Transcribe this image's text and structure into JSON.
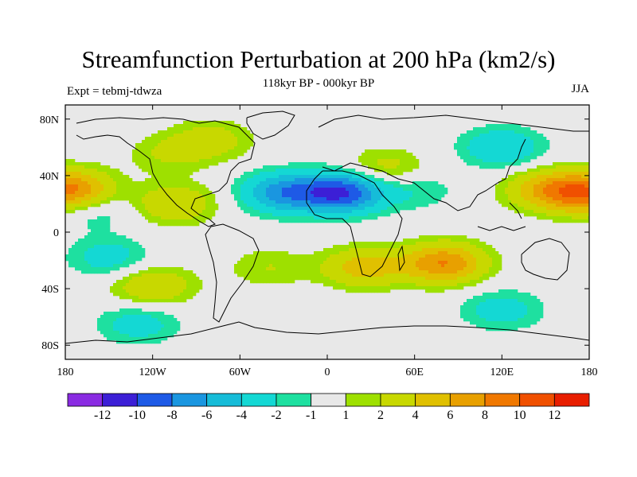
{
  "title": "Streamfunction Perturbation at 200 hPa (km2/s)",
  "subtitle": "118kyr BP - 000kyr BP",
  "left_label": "Expt = tebmj-tdwza",
  "right_label": "JJA",
  "x_ticks": [
    "180",
    "120W",
    "60W",
    "0",
    "60E",
    "120E",
    "180"
  ],
  "y_ticks": [
    "80N",
    "40N",
    "0",
    "40S",
    "80S"
  ],
  "colorbar": {
    "colors": [
      "#8a2be2",
      "#3c1fd6",
      "#1e5ae6",
      "#1a96e0",
      "#16bcd8",
      "#14d8d4",
      "#1ee0a0",
      "#e8e8e8",
      "#9ee000",
      "#c8d800",
      "#e0c000",
      "#e8a000",
      "#f07800",
      "#f05000",
      "#e81e00"
    ],
    "labels": [
      "-12",
      "-10",
      "-8",
      "-6",
      "-4",
      "-2",
      "-1",
      "1",
      "2",
      "4",
      "6",
      "8",
      "10",
      "12"
    ]
  },
  "chart_data": {
    "type": "heatmap",
    "title": "Streamfunction Perturbation at 200 hPa (km2/s)",
    "subtitle": "118kyr BP - 000kyr BP",
    "xlim": [
      -180,
      180
    ],
    "ylim": [
      -90,
      90
    ],
    "x_ticks": [
      -180,
      -120,
      -60,
      0,
      60,
      120,
      180
    ],
    "y_ticks": [
      80,
      40,
      0,
      -40,
      -80
    ],
    "levels": [
      -12,
      -10,
      -8,
      -6,
      -4,
      -2,
      -1,
      1,
      2,
      4,
      6,
      8,
      10,
      12
    ],
    "features": [
      {
        "lon": -178,
        "lat": 30,
        "value": 9
      },
      {
        "lon": 178,
        "lat": 28,
        "value": 9
      },
      {
        "lon": 150,
        "lat": 30,
        "value": 5
      },
      {
        "lon": -105,
        "lat": 20,
        "value": 4
      },
      {
        "lon": -110,
        "lat": 55,
        "value": 2
      },
      {
        "lon": -80,
        "lat": 65,
        "value": 3
      },
      {
        "lon": 80,
        "lat": -22,
        "value": 8
      },
      {
        "lon": 25,
        "lat": -25,
        "value": 5
      },
      {
        "lon": -120,
        "lat": -38,
        "value": 4
      },
      {
        "lon": 40,
        "lat": 45,
        "value": 3
      },
      {
        "lon": -40,
        "lat": -25,
        "value": 2
      },
      {
        "lon": 10,
        "lat": 28,
        "value": -10
      },
      {
        "lon": -30,
        "lat": 28,
        "value": -7
      },
      {
        "lon": 120,
        "lat": 60,
        "value": -4
      },
      {
        "lon": -150,
        "lat": -18,
        "value": -3
      },
      {
        "lon": -130,
        "lat": -65,
        "value": -3
      },
      {
        "lon": 120,
        "lat": -55,
        "value": -3
      },
      {
        "lon": 60,
        "lat": 30,
        "value": -2
      },
      {
        "lon": -160,
        "lat": 15,
        "value": -2
      }
    ]
  }
}
